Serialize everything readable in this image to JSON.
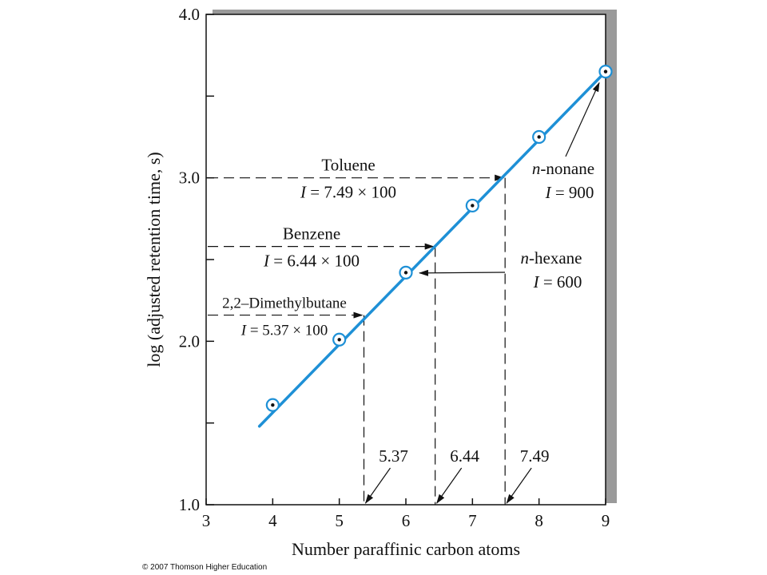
{
  "chart_data": {
    "type": "line",
    "title": "",
    "xlabel": "Number paraffinic carbon atoms",
    "ylabel": "log (adjusted retention time, s)",
    "xlim": [
      3,
      9
    ],
    "ylim": [
      1.0,
      4.0
    ],
    "x_ticks": [
      "3",
      "4",
      "5",
      "6",
      "7",
      "8",
      "9"
    ],
    "y_ticks": [
      "1.0",
      "2.0",
      "3.0",
      "4.0"
    ],
    "y_minor_ticks": [
      1.5,
      2.5,
      3.5
    ],
    "grid": false,
    "line_color": "#1e90d6",
    "series": [
      {
        "points": [
          {
            "x": 4,
            "y": 1.61
          },
          {
            "x": 5,
            "y": 2.01
          },
          {
            "x": 6,
            "y": 2.42
          },
          {
            "x": 7,
            "y": 2.83
          },
          {
            "x": 8,
            "y": 3.25
          },
          {
            "x": 9,
            "y": 3.65
          }
        ],
        "line": {
          "x": [
            3.8,
            9.0
          ],
          "y": [
            1.48,
            3.65
          ]
        }
      }
    ],
    "annotations": [
      {
        "name": "toluene",
        "label": "Toluene",
        "index_label": "I = 7.49 × 100",
        "x": 7.49,
        "y": 3.0,
        "x_label": "7.49"
      },
      {
        "name": "benzene",
        "label": "Benzene",
        "index_label": "I = 6.44 × 100",
        "x": 6.44,
        "y": 2.58,
        "x_label": "6.44"
      },
      {
        "name": "dimethylbutane",
        "label": "2,2–Dimethylbutane",
        "index_label": "I = 5.37 × 100",
        "x": 5.37,
        "y": 2.16,
        "x_label": "5.37"
      }
    ],
    "point_labels": [
      {
        "name": "nonane",
        "label_prefix": "n",
        "label": "-nonane",
        "index_label": "I = 900",
        "x": 9,
        "y": 3.65
      },
      {
        "name": "hexane",
        "label_prefix": "n",
        "label": "-hexane",
        "index_label": "I = 600",
        "x": 6,
        "y": 2.42
      }
    ]
  },
  "copyright": "© 2007 Thomson Higher Education"
}
